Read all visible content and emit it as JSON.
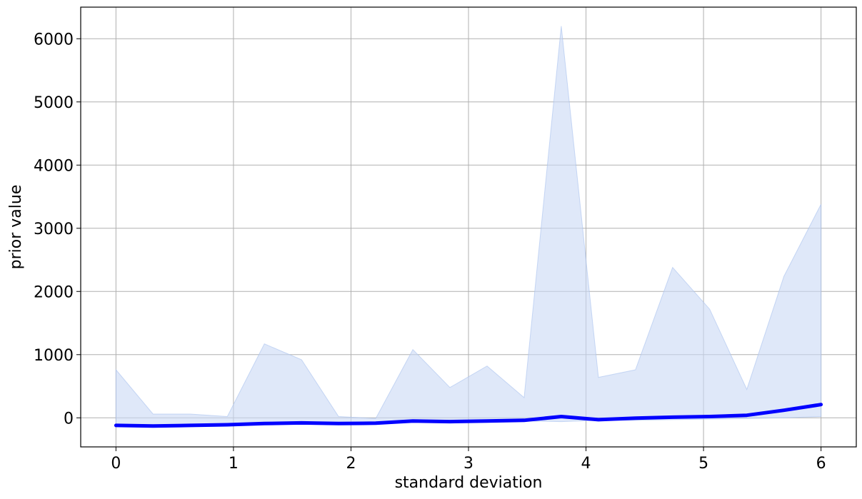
{
  "chart_data": {
    "type": "line",
    "title": "",
    "xlabel": "standard deviation",
    "ylabel": "prior value",
    "xlim": [
      -0.3,
      6.3
    ],
    "ylim": [
      -460,
      6500
    ],
    "xticks": [
      0,
      1,
      2,
      3,
      4,
      5,
      6
    ],
    "yticks": [
      0,
      1000,
      2000,
      3000,
      4000,
      5000,
      6000
    ],
    "grid": true,
    "x": [
      0,
      0.3158,
      0.6316,
      0.9474,
      1.2632,
      1.5789,
      1.8947,
      2.2105,
      2.5263,
      2.8421,
      3.1579,
      3.4737,
      3.7895,
      4.1053,
      4.4211,
      4.7368,
      5.0526,
      5.3684,
      5.6842,
      6.0
    ],
    "series": [
      {
        "role": "mean",
        "color": "#0000ff",
        "values": [
          -120,
          -130,
          -120,
          -110,
          -90,
          -80,
          -90,
          -85,
          -50,
          -60,
          -50,
          -40,
          20,
          -30,
          -5,
          10,
          20,
          40,
          120,
          210
        ]
      }
    ],
    "band": {
      "color": "#c9d9f5",
      "upper": [
        760,
        60,
        60,
        20,
        1170,
        920,
        20,
        -10,
        1080,
        480,
        820,
        320,
        6200,
        640,
        760,
        2380,
        1720,
        450,
        2240,
        3380
      ],
      "lower": [
        -130,
        -140,
        -130,
        -120,
        -100,
        -90,
        -100,
        -100,
        -60,
        -70,
        -60,
        -50,
        -60,
        -40,
        -40,
        -30,
        -20,
        -10,
        0,
        20
      ]
    }
  }
}
